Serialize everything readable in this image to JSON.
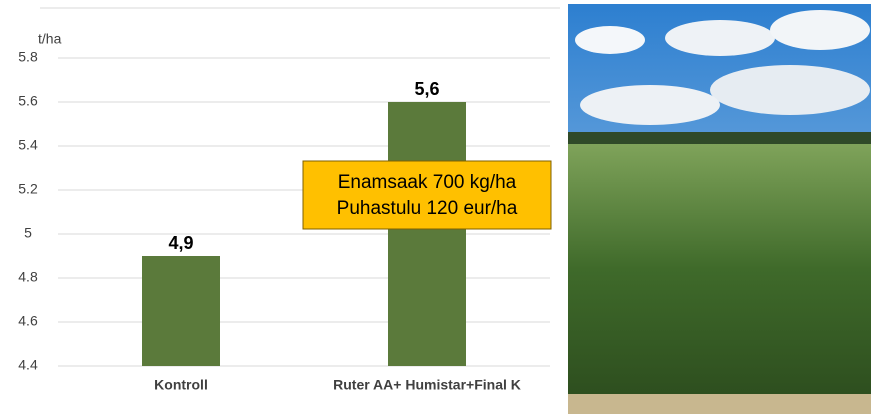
{
  "chart_data": {
    "type": "bar",
    "y_label": "t/ha",
    "categories": [
      "Kontroll",
      "Ruter AA+ Humistar+Final K"
    ],
    "values": [
      4.9,
      5.6
    ],
    "value_labels": [
      "4,9",
      "5,6"
    ],
    "color": "#5b7a3b",
    "ylim": [
      4.4,
      5.8
    ],
    "yticks": [
      4.4,
      4.6,
      4.8,
      5,
      5.2,
      5.4,
      5.6,
      5.8
    ],
    "grid": true,
    "annotation": [
      "Enamsaak 700 kg/ha",
      "Puhastulu 120 eur/ha"
    ],
    "annotation_color": "#ffc000"
  }
}
